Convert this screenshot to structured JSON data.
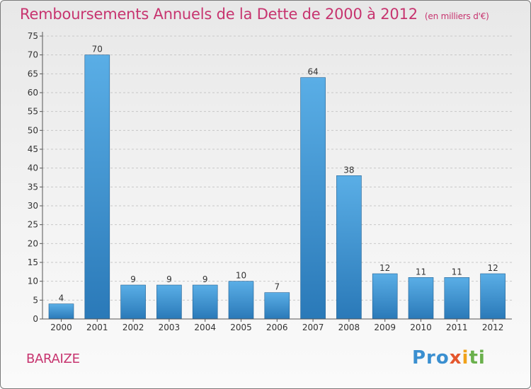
{
  "header": {
    "title": "Remboursements Annuels de la Dette de 2000 à 2012",
    "unit": "(en milliers d'€)"
  },
  "footer": {
    "commune": "BARAIZE",
    "logo": "Proxiti"
  },
  "colors": {
    "title": "#c7346f",
    "bar_top": "#5aaee6",
    "bar_bottom": "#2a79b8",
    "bar_edge": "#1f5f93"
  },
  "chart_data": {
    "type": "bar",
    "title": "Remboursements Annuels de la Dette de 2000 à 2012",
    "subtitle": "(en milliers d'€)",
    "xlabel": "",
    "ylabel": "",
    "ylim": [
      0,
      75
    ],
    "yticks": [
      0,
      5,
      10,
      15,
      20,
      25,
      30,
      35,
      40,
      45,
      50,
      55,
      60,
      65,
      70,
      75
    ],
    "grid": "horizontal dashed",
    "categories": [
      "2000",
      "2001",
      "2002",
      "2003",
      "2004",
      "2005",
      "2006",
      "2007",
      "2008",
      "2009",
      "2010",
      "2011",
      "2012"
    ],
    "values": [
      4,
      70,
      9,
      9,
      9,
      10,
      7,
      64,
      38,
      12,
      11,
      11,
      12
    ]
  }
}
